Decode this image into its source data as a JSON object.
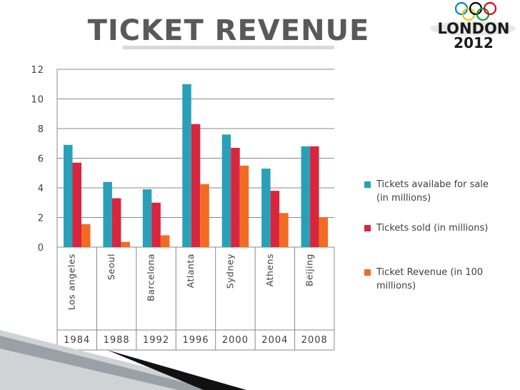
{
  "slide_title": "TICKET REVENUE",
  "logo": {
    "line1": "LONDON",
    "line2": "2012",
    "ring_colors": [
      "#0085c7",
      "#f4c300",
      "#000000",
      "#009f3d",
      "#df0024"
    ]
  },
  "chart_data": {
    "type": "bar",
    "categories": [
      "Los angeles",
      "Seoul",
      "Barcelona",
      "Atlanta",
      "Sydney",
      "Athens",
      "Beijing"
    ],
    "years": [
      "1984",
      "1988",
      "1992",
      "1996",
      "2000",
      "2004",
      "2008"
    ],
    "series": [
      {
        "name": "Tickets availabe for sale (in millions)",
        "color": "#2aa0b8",
        "values": [
          6.9,
          4.4,
          3.9,
          11.0,
          7.6,
          5.3,
          6.8
        ]
      },
      {
        "name": "Tickets sold (in millions)",
        "color": "#d7263d",
        "values": [
          5.7,
          3.3,
          3.0,
          8.3,
          6.7,
          3.8,
          6.8
        ]
      },
      {
        "name": "Ticket Revenue (in 100 millions)",
        "color": "#f26b21",
        "values": [
          1.55,
          0.35,
          0.8,
          4.25,
          5.5,
          2.3,
          2.0
        ]
      }
    ],
    "ylim": [
      0,
      12
    ],
    "yticks": [
      0,
      2,
      4,
      6,
      8,
      10,
      12
    ],
    "grid": true,
    "legend_position": "right"
  },
  "legend": [
    {
      "label": "Tickets availabe for sale (in millions)",
      "color": "#2aa0b8"
    },
    {
      "label": "Tickets sold (in millions)",
      "color": "#d7263d"
    },
    {
      "label": "Ticket Revenue (in 100 millions)",
      "color": "#f26b21"
    }
  ]
}
